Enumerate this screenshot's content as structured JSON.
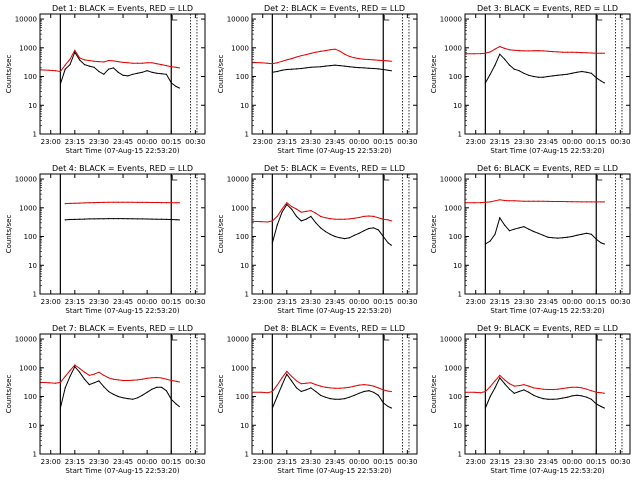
{
  "figure": {
    "ylabel": "Counts/sec",
    "xlabel": "Start Time (07-Aug-15 22:53:20)",
    "y_ticks": [
      "1",
      "10",
      "100",
      "1000",
      "10000"
    ],
    "x_ticks": [
      "23:00",
      "23:15",
      "23:30",
      "23:45",
      "00:00",
      "00:15",
      "00:30"
    ],
    "black_color": "#000000",
    "red_color": "#e00000"
  },
  "chart_data": [
    {
      "type": "line",
      "title": "Det 1: BLACK = Events, RED = LLD",
      "xlim": [
        "22:53:20",
        "00:36"
      ],
      "ylim": [
        1,
        15000
      ],
      "y_scale": "log",
      "x": [
        "22:54",
        "22:59",
        "23:03",
        "23:06",
        "23:09",
        "23:12",
        "23:15",
        "23:18",
        "23:21",
        "23:24",
        "23:27",
        "23:30",
        "23:33",
        "23:36",
        "23:39",
        "23:42",
        "23:45",
        "23:48",
        "23:51",
        "23:54",
        "23:57",
        "00:00",
        "00:03",
        "00:06",
        "00:09",
        "00:12",
        "00:15",
        "00:18",
        "00:20"
      ],
      "series": [
        {
          "values": [
            null,
            null,
            null,
            55,
            180,
            260,
            700,
            380,
            260,
            230,
            210,
            150,
            120,
            180,
            200,
            140,
            110,
            105,
            120,
            130,
            140,
            160,
            140,
            130,
            125,
            120,
            60,
            45,
            40
          ]
        },
        {
          "values": [
            170,
            165,
            160,
            150,
            250,
            400,
            820,
            450,
            380,
            360,
            340,
            330,
            320,
            360,
            350,
            330,
            310,
            300,
            290,
            290,
            290,
            300,
            300,
            280,
            260,
            240,
            220,
            210,
            200
          ]
        }
      ]
    },
    {
      "type": "line",
      "title": "Det 2: BLACK = Events, RED = LLD",
      "xlim": [
        "22:53:20",
        "00:36"
      ],
      "ylim": [
        1,
        15000
      ],
      "y_scale": "log",
      "x": [
        "22:54",
        "22:59",
        "23:03",
        "23:06",
        "23:09",
        "23:12",
        "23:15",
        "23:18",
        "23:21",
        "23:24",
        "23:27",
        "23:30",
        "23:33",
        "23:36",
        "23:39",
        "23:42",
        "23:45",
        "23:48",
        "23:51",
        "23:54",
        "23:57",
        "00:00",
        "00:03",
        "00:06",
        "00:09",
        "00:12",
        "00:15",
        "00:18",
        "00:20"
      ],
      "series": [
        {
          "values": [
            null,
            null,
            null,
            140,
            150,
            165,
            175,
            180,
            185,
            190,
            200,
            210,
            215,
            220,
            230,
            240,
            250,
            240,
            230,
            220,
            210,
            205,
            200,
            195,
            190,
            185,
            175,
            165,
            160
          ]
        },
        {
          "values": [
            310,
            300,
            290,
            280,
            300,
            340,
            380,
            420,
            480,
            530,
            580,
            640,
            700,
            750,
            800,
            850,
            900,
            760,
            600,
            500,
            450,
            420,
            400,
            390,
            380,
            370,
            360,
            350,
            340
          ]
        }
      ]
    },
    {
      "type": "line",
      "title": "Det 3: BLACK = Events, RED = LLD",
      "xlim": [
        "22:53:20",
        "00:36"
      ],
      "ylim": [
        1,
        15000
      ],
      "y_scale": "log",
      "x": [
        "22:54",
        "22:59",
        "23:03",
        "23:06",
        "23:09",
        "23:12",
        "23:15",
        "23:18",
        "23:21",
        "23:24",
        "23:27",
        "23:30",
        "23:33",
        "23:36",
        "23:39",
        "23:42",
        "23:45",
        "23:48",
        "23:51",
        "23:54",
        "23:57",
        "00:00",
        "00:03",
        "00:06",
        "00:09",
        "00:12",
        "00:15",
        "00:18",
        "00:20"
      ],
      "series": [
        {
          "values": [
            null,
            null,
            null,
            60,
            120,
            250,
            600,
            400,
            250,
            180,
            160,
            130,
            110,
            100,
            95,
            95,
            100,
            105,
            110,
            115,
            120,
            130,
            140,
            150,
            140,
            130,
            90,
            70,
            60
          ]
        },
        {
          "values": [
            620,
            620,
            630,
            650,
            720,
            900,
            1100,
            950,
            850,
            820,
            800,
            780,
            780,
            790,
            800,
            780,
            760,
            740,
            720,
            700,
            700,
            700,
            690,
            680,
            670,
            660,
            650,
            650,
            650
          ]
        }
      ]
    },
    {
      "type": "line",
      "title": "Det 4: BLACK = Events, RED = LLD",
      "xlim": [
        "22:53:20",
        "00:36"
      ],
      "ylim": [
        1,
        15000
      ],
      "y_scale": "log",
      "x": [
        "22:54",
        "22:59",
        "23:03",
        "23:06",
        "23:09",
        "23:12",
        "23:15",
        "23:18",
        "23:21",
        "23:24",
        "23:27",
        "23:30",
        "23:33",
        "23:36",
        "23:39",
        "23:42",
        "23:45",
        "23:48",
        "23:51",
        "23:54",
        "23:57",
        "00:00",
        "00:03",
        "00:06",
        "00:09",
        "00:12",
        "00:15",
        "00:18",
        "00:20"
      ],
      "series": [
        {
          "values": [
            null,
            null,
            null,
            null,
            380,
            390,
            395,
            400,
            405,
            410,
            410,
            415,
            415,
            420,
            420,
            420,
            420,
            418,
            415,
            412,
            410,
            408,
            405,
            402,
            400,
            395,
            390,
            385,
            380
          ]
        },
        {
          "values": [
            null,
            null,
            null,
            null,
            1400,
            1420,
            1440,
            1460,
            1480,
            1500,
            1520,
            1530,
            1540,
            1550,
            1560,
            1560,
            1560,
            1555,
            1550,
            1545,
            1540,
            1535,
            1530,
            1525,
            1520,
            1515,
            1510,
            1500,
            1500
          ]
        }
      ]
    },
    {
      "type": "line",
      "title": "Det 5: BLACK = Events, RED = LLD",
      "xlim": [
        "22:53:20",
        "00:36"
      ],
      "ylim": [
        1,
        15000
      ],
      "y_scale": "log",
      "x": [
        "22:54",
        "22:59",
        "23:03",
        "23:06",
        "23:09",
        "23:12",
        "23:15",
        "23:18",
        "23:21",
        "23:24",
        "23:27",
        "23:30",
        "23:33",
        "23:36",
        "23:39",
        "23:42",
        "23:45",
        "23:48",
        "23:51",
        "23:54",
        "23:57",
        "00:00",
        "00:03",
        "00:06",
        "00:09",
        "00:12",
        "00:15",
        "00:18",
        "00:20"
      ],
      "series": [
        {
          "values": [
            null,
            null,
            null,
            60,
            250,
            700,
            1300,
            900,
            500,
            350,
            400,
            500,
            300,
            200,
            150,
            120,
            100,
            90,
            85,
            90,
            110,
            130,
            160,
            190,
            200,
            170,
            100,
            60,
            50
          ]
        },
        {
          "values": [
            340,
            330,
            320,
            350,
            500,
            900,
            1500,
            1100,
            900,
            700,
            750,
            800,
            650,
            500,
            450,
            420,
            400,
            400,
            400,
            410,
            430,
            460,
            500,
            520,
            500,
            450,
            400,
            380,
            350
          ]
        }
      ]
    },
    {
      "type": "line",
      "title": "Det 6: BLACK = Events, RED = LLD",
      "xlim": [
        "22:53:20",
        "00:36"
      ],
      "ylim": [
        1,
        15000
      ],
      "y_scale": "log",
      "x": [
        "22:54",
        "22:59",
        "23:03",
        "23:06",
        "23:09",
        "23:12",
        "23:15",
        "23:18",
        "23:21",
        "23:24",
        "23:27",
        "23:30",
        "23:33",
        "23:36",
        "23:39",
        "23:42",
        "23:45",
        "23:48",
        "23:51",
        "23:54",
        "23:57",
        "00:00",
        "00:03",
        "00:06",
        "00:09",
        "00:12",
        "00:15",
        "00:18",
        "00:20"
      ],
      "series": [
        {
          "values": [
            null,
            null,
            null,
            55,
            70,
            120,
            450,
            250,
            160,
            180,
            200,
            220,
            180,
            150,
            130,
            110,
            95,
            90,
            88,
            90,
            95,
            100,
            110,
            120,
            130,
            120,
            80,
            60,
            55
          ]
        },
        {
          "values": [
            1500,
            1500,
            1520,
            1550,
            1600,
            1750,
            1900,
            1800,
            1750,
            1750,
            1720,
            1700,
            1700,
            1700,
            1690,
            1680,
            1670,
            1660,
            1650,
            1650,
            1640,
            1630,
            1620,
            1610,
            1600,
            1600,
            1600,
            1600,
            1600
          ]
        }
      ]
    },
    {
      "type": "line",
      "title": "Det 7: BLACK = Events, RED = LLD",
      "xlim": [
        "22:53:20",
        "00:36"
      ],
      "ylim": [
        1,
        15000
      ],
      "y_scale": "log",
      "x": [
        "22:54",
        "22:59",
        "23:03",
        "23:06",
        "23:09",
        "23:12",
        "23:15",
        "23:18",
        "23:21",
        "23:24",
        "23:27",
        "23:30",
        "23:33",
        "23:36",
        "23:39",
        "23:42",
        "23:45",
        "23:48",
        "23:51",
        "23:54",
        "23:57",
        "00:00",
        "00:03",
        "00:06",
        "00:09",
        "00:12",
        "00:15",
        "00:18",
        "00:20"
      ],
      "series": [
        {
          "values": [
            null,
            null,
            null,
            40,
            200,
            500,
            1100,
            700,
            400,
            260,
            300,
            350,
            220,
            150,
            120,
            100,
            90,
            85,
            80,
            90,
            110,
            140,
            180,
            210,
            210,
            160,
            80,
            55,
            45
          ]
        },
        {
          "values": [
            310,
            300,
            290,
            310,
            500,
            800,
            1250,
            950,
            700,
            550,
            600,
            700,
            550,
            450,
            400,
            380,
            360,
            360,
            370,
            380,
            400,
            430,
            450,
            460,
            440,
            400,
            360,
            340,
            320
          ]
        }
      ]
    },
    {
      "type": "line",
      "title": "Det 8: BLACK = Events, RED = LLD",
      "xlim": [
        "22:53:20",
        "00:36"
      ],
      "ylim": [
        1,
        15000
      ],
      "y_scale": "log",
      "x": [
        "22:54",
        "22:59",
        "23:03",
        "23:06",
        "23:09",
        "23:12",
        "23:15",
        "23:18",
        "23:21",
        "23:24",
        "23:27",
        "23:30",
        "23:33",
        "23:36",
        "23:39",
        "23:42",
        "23:45",
        "23:48",
        "23:51",
        "23:54",
        "23:57",
        "00:00",
        "00:03",
        "00:06",
        "00:09",
        "00:12",
        "00:15",
        "00:18",
        "00:20"
      ],
      "series": [
        {
          "values": [
            null,
            null,
            null,
            40,
            100,
            250,
            600,
            350,
            200,
            150,
            170,
            200,
            150,
            110,
            95,
            85,
            80,
            80,
            85,
            95,
            110,
            130,
            150,
            160,
            140,
            110,
            60,
            45,
            40
          ]
        },
        {
          "values": [
            140,
            140,
            135,
            150,
            250,
            450,
            750,
            500,
            350,
            280,
            290,
            300,
            260,
            230,
            210,
            200,
            195,
            195,
            200,
            210,
            230,
            250,
            260,
            250,
            230,
            200,
            170,
            155,
            150
          ]
        }
      ]
    },
    {
      "type": "line",
      "title": "Det 9: BLACK = Events, RED = LLD",
      "xlim": [
        "22:53:20",
        "00:36"
      ],
      "ylim": [
        1,
        15000
      ],
      "y_scale": "log",
      "x": [
        "22:54",
        "22:59",
        "23:03",
        "23:06",
        "23:09",
        "23:12",
        "23:15",
        "23:18",
        "23:21",
        "23:24",
        "23:27",
        "23:30",
        "23:33",
        "23:36",
        "23:39",
        "23:42",
        "23:45",
        "23:48",
        "23:51",
        "23:54",
        "23:57",
        "00:00",
        "00:03",
        "00:06",
        "00:09",
        "00:12",
        "00:15",
        "00:18",
        "00:20"
      ],
      "series": [
        {
          "values": [
            null,
            null,
            null,
            40,
            100,
            200,
            450,
            280,
            180,
            130,
            150,
            170,
            140,
            110,
            95,
            85,
            80,
            80,
            82,
            88,
            95,
            105,
            110,
            105,
            95,
            80,
            55,
            45,
            40
          ]
        },
        {
          "values": [
            140,
            140,
            135,
            150,
            220,
            350,
            550,
            380,
            280,
            230,
            240,
            260,
            230,
            200,
            190,
            180,
            175,
            175,
            180,
            190,
            200,
            210,
            210,
            200,
            180,
            160,
            140,
            135,
            130
          ]
        }
      ]
    }
  ]
}
